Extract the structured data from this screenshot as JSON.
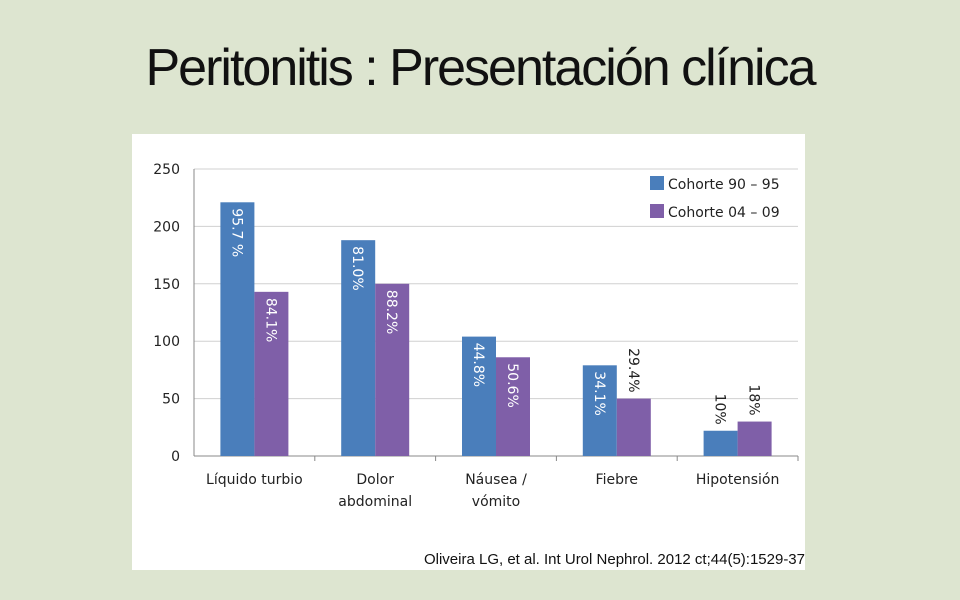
{
  "title": "Peritonitis : Presentación clínica",
  "citation": "Oliveira LG, et al. Int Urol Nephrol. 2012 ct;44(5):1529-37",
  "colors": {
    "series1": "#4a7ebb",
    "series2": "#7f5fa8",
    "inside_label": "#ffffff",
    "outside_label": "#222222"
  },
  "chart_data": {
    "type": "bar",
    "categories": [
      [
        "Líquido turbio"
      ],
      [
        "Dolor",
        "abdominal"
      ],
      [
        "Náusea /",
        "vómito"
      ],
      [
        "Fiebre"
      ],
      [
        "Hipotensión"
      ]
    ],
    "series": [
      {
        "name": "Cohorte 90 – 95",
        "values": [
          221,
          188,
          104,
          79,
          22
        ],
        "labels": [
          "95.7 %",
          "81.0%",
          "44.8%",
          "34.1%",
          "10%"
        ]
      },
      {
        "name": "Cohorte 04 – 09",
        "values": [
          143,
          150,
          86,
          50,
          30
        ],
        "labels": [
          "84.1%",
          "88.2%",
          "50.6%",
          "29.4%",
          "18%"
        ]
      }
    ],
    "ylim": [
      0,
      250
    ],
    "yticks": [
      0,
      50,
      100,
      150,
      200,
      250
    ],
    "grid": true,
    "legend_position": "top-right"
  }
}
